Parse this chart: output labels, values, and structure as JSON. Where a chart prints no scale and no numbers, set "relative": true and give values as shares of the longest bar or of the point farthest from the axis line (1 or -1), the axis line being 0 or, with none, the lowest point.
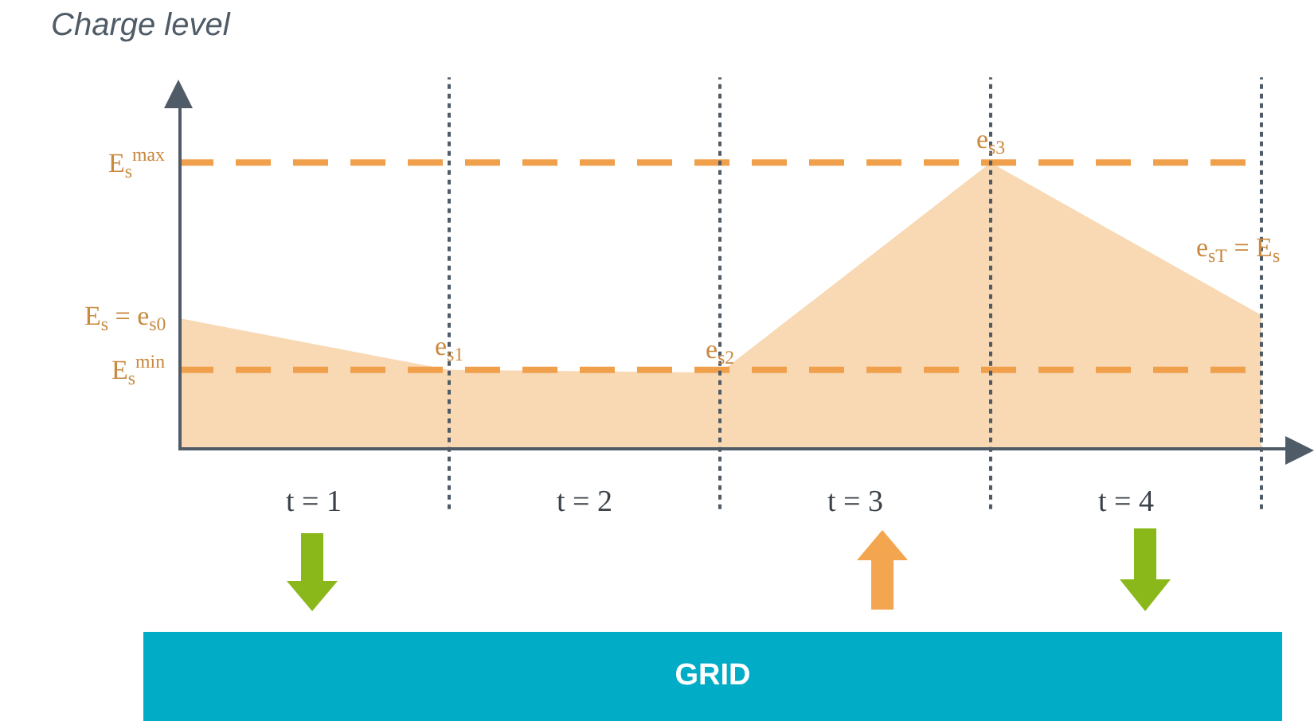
{
  "chart_data": {
    "type": "area",
    "relative": true,
    "ylabel": "Charge level",
    "x": [
      0,
      1,
      2,
      3,
      4
    ],
    "xlim": [
      0,
      4.1
    ],
    "xticks": [
      {
        "value": 0.5,
        "label": "t = 1"
      },
      {
        "value": 1.5,
        "label": "t = 2"
      },
      {
        "value": 2.5,
        "label": "t = 3"
      },
      {
        "value": 3.5,
        "label": "t = 4"
      }
    ],
    "series": [
      {
        "color": "#f8d9b4",
        "values": [
          0.46,
          0.28,
          0.27,
          1,
          0.47
        ]
      }
    ],
    "ref_lines": [
      {
        "axis": "y",
        "value": 1,
        "label": "E$_{s}$$^{max}$",
        "color": "#f0a04b",
        "line_style": "dashed"
      },
      {
        "axis": "y",
        "value": 0.28,
        "label": "E$_{s}$$^{min}$",
        "color": "#f0a04b",
        "line_style": "dashed"
      },
      {
        "axis": "x",
        "value": 1,
        "color": "#4f5b66",
        "line_style": "dotted"
      },
      {
        "axis": "x",
        "value": 2,
        "color": "#4f5b66",
        "line_style": "dotted"
      },
      {
        "axis": "x",
        "value": 3,
        "color": "#4f5b66",
        "line_style": "dotted"
      },
      {
        "axis": "x",
        "value": 4,
        "color": "#4f5b66",
        "line_style": "dotted"
      }
    ],
    "annotations": [
      {
        "text": "E$_{s}$ = e$_{s0}$",
        "x": 0,
        "y": 0.46
      },
      {
        "text": "e$_{s1}$",
        "x": 1,
        "y": 0.28
      },
      {
        "text": "e$_{s2}$",
        "x": 2,
        "y": 0.27
      },
      {
        "text": "e$_{s3}$",
        "x": 3,
        "y": 1
      },
      {
        "text": "e$_{sT}$ = E$_{s}$",
        "x": 4,
        "y": 0.47
      },
      "GRID"
    ]
  }
}
